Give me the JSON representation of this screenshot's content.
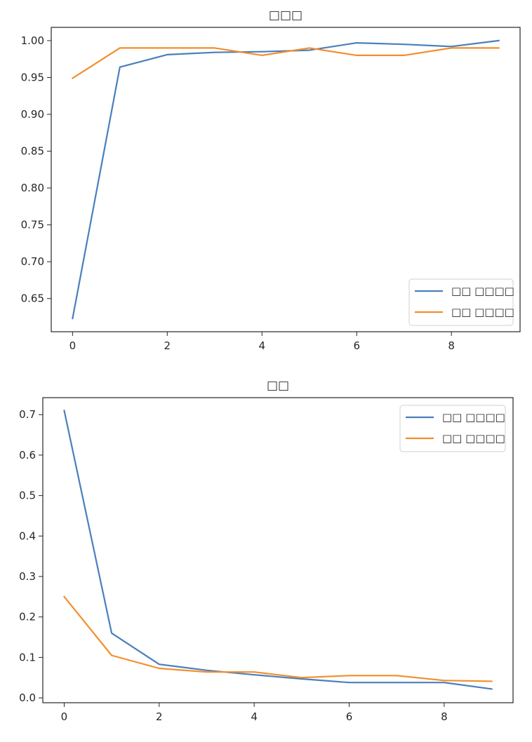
{
  "chart_data": [
    {
      "type": "line",
      "title": "□□□",
      "xlabel": "",
      "ylabel": "",
      "x": [
        0,
        1,
        2,
        3,
        4,
        5,
        6,
        7,
        8,
        9
      ],
      "xlim": [
        -0.45,
        9.45
      ],
      "ylim": [
        0.605,
        1.018
      ],
      "xticks": [
        0,
        2,
        4,
        6,
        8
      ],
      "yticks": [
        0.65,
        0.7,
        0.75,
        0.8,
        0.85,
        0.9,
        0.95,
        1.0
      ],
      "ytick_labels": [
        "0.65",
        "0.70",
        "0.75",
        "0.80",
        "0.85",
        "0.90",
        "0.95",
        "1.00"
      ],
      "legend_position": "lower-right",
      "grid": false,
      "series": [
        {
          "name": "□□ □□□□",
          "color": "#4a7fbb",
          "values": [
            0.623,
            0.964,
            0.981,
            0.984,
            0.985,
            0.987,
            0.997,
            0.995,
            0.992,
            1.0
          ]
        },
        {
          "name": "□□ □□□□",
          "color": "#f28e2b",
          "values": [
            0.949,
            0.99,
            0.99,
            0.99,
            0.98,
            0.99,
            0.98,
            0.98,
            0.99,
            0.99
          ]
        }
      ]
    },
    {
      "type": "line",
      "title": "□□",
      "xlabel": "",
      "ylabel": "",
      "x": [
        0,
        1,
        2,
        3,
        4,
        5,
        6,
        7,
        8,
        9
      ],
      "xlim": [
        -0.45,
        9.45
      ],
      "ylim": [
        -0.012,
        0.742
      ],
      "xticks": [
        0,
        2,
        4,
        6,
        8
      ],
      "yticks": [
        0.0,
        0.1,
        0.2,
        0.3,
        0.4,
        0.5,
        0.6,
        0.7
      ],
      "ytick_labels": [
        "0.0",
        "0.1",
        "0.2",
        "0.3",
        "0.4",
        "0.5",
        "0.6",
        "0.7"
      ],
      "legend_position": "upper-right",
      "grid": false,
      "series": [
        {
          "name": "□□ □□□□",
          "color": "#4a7fbb",
          "values": [
            0.71,
            0.16,
            0.083,
            0.068,
            0.057,
            0.047,
            0.038,
            0.038,
            0.038,
            0.022
          ]
        },
        {
          "name": "□□ □□□□",
          "color": "#f28e2b",
          "values": [
            0.25,
            0.105,
            0.073,
            0.064,
            0.064,
            0.05,
            0.055,
            0.055,
            0.043,
            0.041
          ]
        }
      ]
    }
  ]
}
